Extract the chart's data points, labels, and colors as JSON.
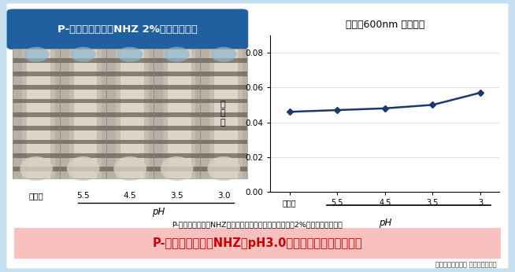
{
  "title": "P-コンドロイチンNHZ 2%溶液の溶解性",
  "chart_title": "濁度（600nm 吸光度）",
  "ylabel": "吸\n光\n度",
  "xlabel": "pH",
  "x_labels": [
    "蒸留水",
    "5.5",
    "4.5",
    "3.5",
    "3"
  ],
  "x_values": [
    0,
    1,
    2,
    3,
    4
  ],
  "y_values": [
    0.046,
    0.047,
    0.048,
    0.05,
    0.057
  ],
  "ylim": [
    0,
    0.09
  ],
  "yticks": [
    0,
    0.02,
    0.04,
    0.06,
    0.08
  ],
  "line_color": "#1a3a6b",
  "marker": "D",
  "marker_size": 4.5,
  "outer_bg": "#c5dff0",
  "border_color": "#3399cc",
  "inner_bg": "#ffffff",
  "title_bg": "#2060a0",
  "title_fg": "#ffffff",
  "subtitle_text": "P-コンドロイチンNHZを蒸留水またはクエン酸緩衝液に2%濃度で溶解した。",
  "highlight_text": "P-コンドロイチンNHZはpH3.0でも沈殿・白濁しません",
  "highlight_bg": "#f9c0c0",
  "highlight_fg": "#cc0000",
  "caption": "日本ハム株式会社 中央研究所調べ",
  "photo_labels": [
    "蒸留水",
    "5.5",
    "4.5",
    "3.5",
    "3.0"
  ],
  "photo_xlabel": "pH",
  "photo_bg_light": "#e8e0d8",
  "photo_bg_dark": "#b0a898",
  "photo_stripe_dark": "#7a7068",
  "photo_tube_light": "#d8d0c8",
  "chart_grid_color": "#e0e0e0"
}
